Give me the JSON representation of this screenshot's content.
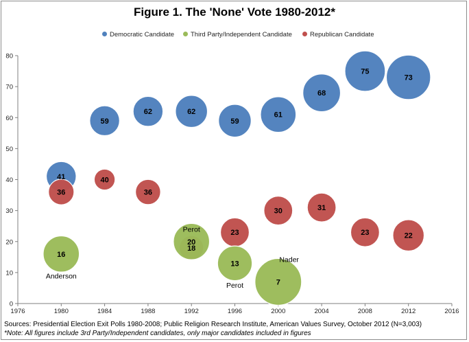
{
  "chart_data": {
    "type": "scatter",
    "title": "Figure 1. The 'None' Vote 1980-2012*",
    "xlabel": "",
    "ylabel": "",
    "xlim": [
      1976,
      2016
    ],
    "ylim": [
      0,
      80
    ],
    "xticks": [
      "1976",
      "1980",
      "1984",
      "1988",
      "1992",
      "1996",
      "2000",
      "2004",
      "2008",
      "2012",
      "2016"
    ],
    "yticks": [
      "0",
      "10",
      "20",
      "30",
      "40",
      "50",
      "60",
      "70",
      "80"
    ],
    "grid": false,
    "legend_position": "top",
    "series": [
      {
        "name": "Democratic Candidate",
        "color": "#4f81bd",
        "points": [
          {
            "x": 1980,
            "y": 41,
            "label": "41",
            "size": 41
          },
          {
            "x": 1984,
            "y": 59,
            "label": "59",
            "size": 41
          },
          {
            "x": 1988,
            "y": 62,
            "label": "62",
            "size": 41
          },
          {
            "x": 1992,
            "y": 62,
            "label": "62",
            "size": 47
          },
          {
            "x": 1996,
            "y": 59,
            "label": "59",
            "size": 49
          },
          {
            "x": 2000,
            "y": 61,
            "label": "61",
            "size": 58
          },
          {
            "x": 2004,
            "y": 68,
            "label": "68",
            "size": 65
          },
          {
            "x": 2008,
            "y": 75,
            "label": "75",
            "size": 75
          },
          {
            "x": 2012,
            "y": 73,
            "label": "73",
            "size": 90
          }
        ]
      },
      {
        "name": "Third Party/Independent Candidate",
        "color": "#9bbb59",
        "points": [
          {
            "x": 1980,
            "y": 16,
            "label": "16",
            "size": 60
          },
          {
            "x": 1992,
            "y": 20,
            "label": "20",
            "size": 60
          },
          {
            "x": 1996,
            "y": 13,
            "label": "13",
            "size": 55
          },
          {
            "x": 2000,
            "y": 7,
            "label": "7",
            "size": 100
          }
        ]
      },
      {
        "name": "Republican Candidate",
        "color": "#c0504d",
        "points": [
          {
            "x": 1980,
            "y": 36,
            "label": "36",
            "size": 30
          },
          {
            "x": 1984,
            "y": 40,
            "label": "40",
            "size": 20
          },
          {
            "x": 1988,
            "y": 36,
            "label": "36",
            "size": 29
          },
          {
            "x": 1992,
            "y": 18,
            "label": "18",
            "size": 27
          },
          {
            "x": 1996,
            "y": 23,
            "label": "23",
            "size": 38
          },
          {
            "x": 2000,
            "y": 30,
            "label": "30",
            "size": 38
          },
          {
            "x": 2004,
            "y": 31,
            "label": "31",
            "size": 38
          },
          {
            "x": 2008,
            "y": 23,
            "label": "23",
            "size": 38
          },
          {
            "x": 2012,
            "y": 22,
            "label": "22",
            "size": 45
          }
        ]
      }
    ],
    "annotations": [
      {
        "text": "Anderson",
        "x": 1980,
        "y": 9
      },
      {
        "text": "Perot",
        "x": 1992,
        "y": 24
      },
      {
        "text": "Perot",
        "x": 1996,
        "y": 6
      },
      {
        "text": "Nader",
        "x": 2001,
        "y": 14.3
      }
    ]
  },
  "legend": {
    "democratic": "Democratic Candidate",
    "third_party": "Third Party/Independent Candidate",
    "republican": "Republican Candidate",
    "colors": {
      "democratic": "#4f81bd",
      "third_party": "#9bbb59",
      "republican": "#c0504d"
    }
  },
  "footer": {
    "sources": "Sources: Presidential Election Exit Polls 1980-2008; Public Religion Research Institute, American Values Survey, October 2012 (N=3,003)",
    "note": "*Note: All figures include 3rd Party/Independent candidates, only major candidates included in figures"
  }
}
